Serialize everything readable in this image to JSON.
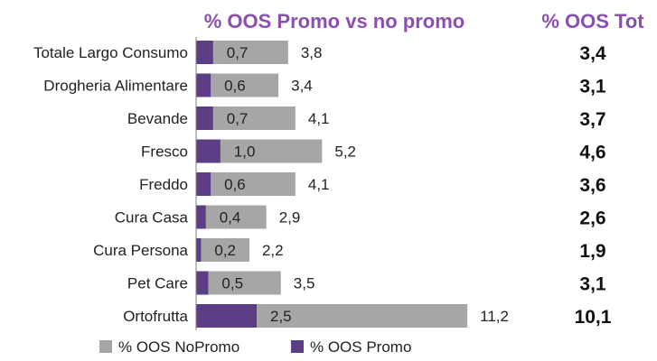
{
  "chart_data": {
    "type": "bar",
    "orientation": "horizontal",
    "stacked": false,
    "overlapping_bars": true,
    "title": "% OOS Promo vs no promo",
    "side_title": "% OOS Tot",
    "xlabel": "",
    "ylabel": "",
    "xlim": [
      0,
      12
    ],
    "grid": false,
    "legend_placement": "bottom",
    "categories": [
      "Totale Largo Consumo",
      "Drogheria Alimentare",
      "Bevande",
      "Fresco",
      "Freddo",
      "Cura Casa",
      "Cura Persona",
      "Pet Care",
      "Ortofrutta"
    ],
    "series": [
      {
        "name": "% OOS NoPromo",
        "color": "#a6a6a6",
        "values": [
          3.8,
          3.4,
          4.1,
          5.2,
          4.1,
          2.9,
          2.2,
          3.5,
          11.2
        ],
        "labels": [
          "3,8",
          "3,4",
          "4,1",
          "5,2",
          "4,1",
          "2,9",
          "2,2",
          "3,5",
          "11,2"
        ]
      },
      {
        "name": "% OOS Promo",
        "color": "#5c3e86",
        "values": [
          0.7,
          0.6,
          0.7,
          1.0,
          0.6,
          0.4,
          0.2,
          0.5,
          2.5
        ],
        "labels": [
          "0,7",
          "0,6",
          "0,7",
          "1,0",
          "0,6",
          "0,4",
          "0,2",
          "0,5",
          "2,5"
        ]
      }
    ],
    "tot": {
      "values": [
        3.4,
        3.1,
        3.7,
        4.6,
        3.6,
        2.6,
        1.9,
        3.1,
        10.1
      ],
      "labels": [
        "3,4",
        "3,1",
        "3,7",
        "4,6",
        "3,6",
        "2,6",
        "1,9",
        "3,1",
        "10,1"
      ]
    }
  },
  "colors": {
    "title": "#8a4fb0",
    "axis": "#7f7f7f",
    "text": "#222222",
    "tot_text": "#111111"
  }
}
